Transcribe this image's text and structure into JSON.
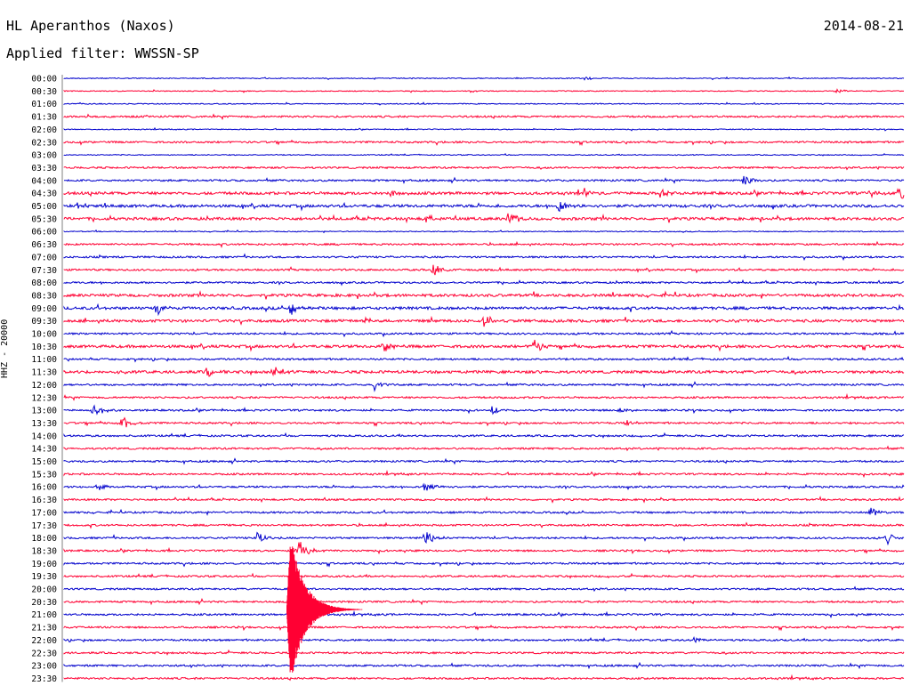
{
  "header": {
    "station": "HL Aperanthos (Naxos)",
    "date": "2014-08-21",
    "filter": "Applied filter: WWSSN-SP",
    "channel_label": "HHZ - 20000"
  },
  "colors": {
    "even_row": "#0000cc",
    "odd_row": "#ff0033"
  },
  "chart_data": {
    "type": "helicorder",
    "title": "HL Aperanthos (Naxos)",
    "subtitle": "Applied filter: WWSSN-SP",
    "ylabel": "HHZ - 20000",
    "row_labels": [
      "00:00",
      "00:30",
      "01:00",
      "01:30",
      "02:00",
      "02:30",
      "03:00",
      "03:30",
      "04:00",
      "04:30",
      "05:00",
      "05:30",
      "06:00",
      "06:30",
      "07:00",
      "07:30",
      "08:00",
      "08:30",
      "09:00",
      "09:30",
      "10:00",
      "10:30",
      "11:00",
      "11:30",
      "12:00",
      "12:30",
      "13:00",
      "13:30",
      "14:00",
      "14:30",
      "15:00",
      "15:30",
      "16:00",
      "16:30",
      "17:00",
      "17:30",
      "18:00",
      "18:30",
      "19:00",
      "19:30",
      "20:00",
      "20:30",
      "21:00",
      "21:30",
      "22:00",
      "22:30",
      "23:00",
      "23:30"
    ],
    "row_colors_alternate": [
      "blue",
      "red"
    ],
    "noise_level": [
      1,
      1,
      1,
      2,
      1,
      2,
      1,
      2,
      2,
      3,
      3,
      3,
      1,
      2,
      2,
      2,
      2,
      3,
      3,
      3,
      2,
      3,
      2,
      3,
      2,
      2,
      2,
      2,
      2,
      2,
      2,
      2,
      2,
      2,
      2,
      2,
      2,
      2,
      2,
      2,
      2,
      2,
      2,
      2,
      2,
      2,
      2,
      2
    ],
    "events": [
      {
        "row": 0,
        "x": 0.62,
        "amp": 2
      },
      {
        "row": 1,
        "x": 0.92,
        "amp": 3
      },
      {
        "row": 8,
        "x": 0.81,
        "amp": 6
      },
      {
        "row": 9,
        "x": 0.39,
        "amp": 5
      },
      {
        "row": 9,
        "x": 0.62,
        "amp": 5
      },
      {
        "row": 9,
        "x": 0.71,
        "amp": 5
      },
      {
        "row": 9,
        "x": 0.96,
        "amp": 4
      },
      {
        "row": 9,
        "x": 0.995,
        "amp": 12
      },
      {
        "row": 10,
        "x": 0.59,
        "amp": 9
      },
      {
        "row": 10,
        "x": 0.015,
        "amp": 4
      },
      {
        "row": 11,
        "x": 0.43,
        "amp": 5
      },
      {
        "row": 11,
        "x": 0.53,
        "amp": 9
      },
      {
        "row": 15,
        "x": 0.44,
        "amp": 8
      },
      {
        "row": 18,
        "x": 0.11,
        "amp": 9
      },
      {
        "row": 18,
        "x": 0.27,
        "amp": 8
      },
      {
        "row": 19,
        "x": 0.36,
        "amp": 4
      },
      {
        "row": 19,
        "x": 0.5,
        "amp": 6
      },
      {
        "row": 21,
        "x": 0.38,
        "amp": 8
      },
      {
        "row": 21,
        "x": 0.56,
        "amp": 9
      },
      {
        "row": 23,
        "x": 0.17,
        "amp": 6
      },
      {
        "row": 23,
        "x": 0.25,
        "amp": 7
      },
      {
        "row": 24,
        "x": 0.37,
        "amp": 8
      },
      {
        "row": 26,
        "x": 0.035,
        "amp": 9
      },
      {
        "row": 26,
        "x": 0.51,
        "amp": 6
      },
      {
        "row": 26,
        "x": 0.66,
        "amp": 4
      },
      {
        "row": 27,
        "x": 0.07,
        "amp": 8
      },
      {
        "row": 27,
        "x": 0.67,
        "amp": 5
      },
      {
        "row": 32,
        "x": 0.04,
        "amp": 4
      },
      {
        "row": 32,
        "x": 0.43,
        "amp": 8
      },
      {
        "row": 34,
        "x": 0.96,
        "amp": 6
      },
      {
        "row": 36,
        "x": 0.23,
        "amp": 9
      },
      {
        "row": 36,
        "x": 0.43,
        "amp": 9
      },
      {
        "row": 36,
        "x": 0.98,
        "amp": 7
      },
      {
        "row": 37,
        "x": 0.28,
        "amp": 14
      },
      {
        "row": 44,
        "x": 0.75,
        "amp": 4
      }
    ],
    "major_event": {
      "start_row": 38,
      "x": 0.265,
      "rows": 10,
      "peak_amp": 60
    }
  }
}
